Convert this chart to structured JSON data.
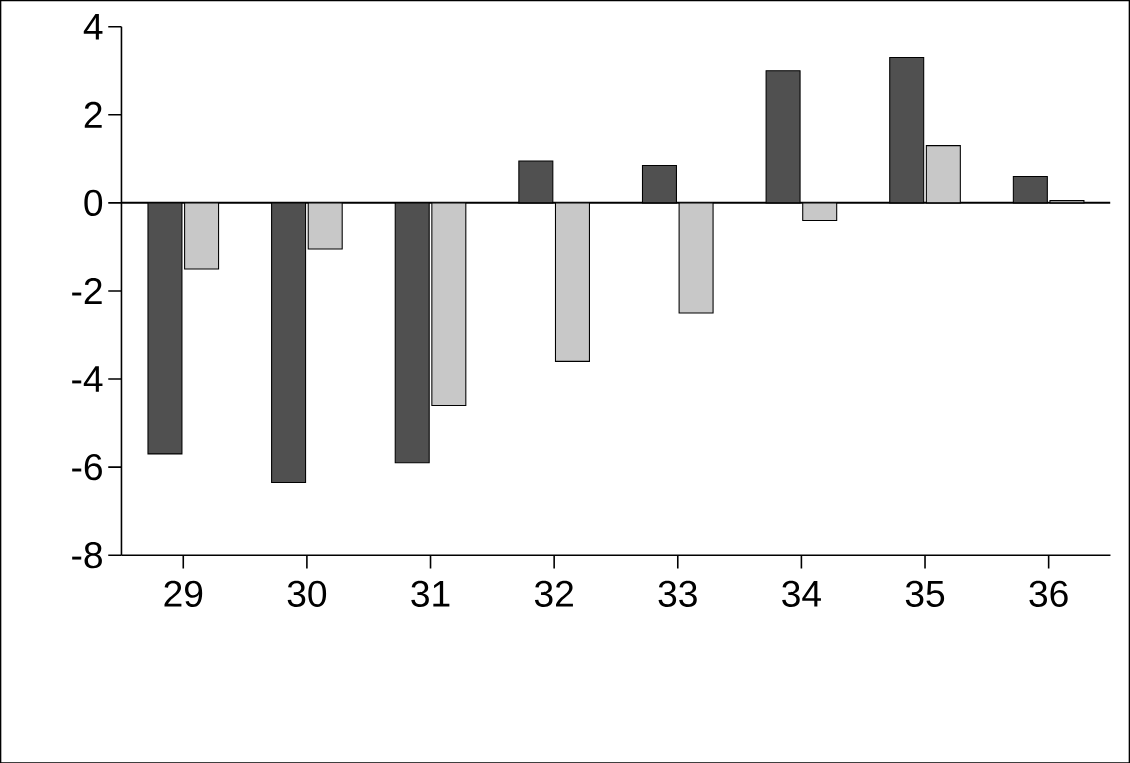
{
  "chart_data": {
    "type": "bar",
    "categories": [
      "29",
      "30",
      "31",
      "32",
      "33",
      "34",
      "35",
      "36"
    ],
    "series": [
      {
        "color": "#505050",
        "values": [
          -5.7,
          -6.35,
          -5.9,
          0.95,
          0.85,
          3.0,
          3.3,
          0.6
        ]
      },
      {
        "color": "#c8c8c8",
        "values": [
          -1.5,
          -1.05,
          -4.6,
          -3.6,
          -2.5,
          -0.4,
          1.3,
          0.05
        ]
      }
    ],
    "ylim": [
      -8,
      4
    ],
    "yticks": [
      -8,
      -6,
      -4,
      -2,
      0,
      2,
      4
    ],
    "ref_lines": [
      {
        "axis": "y",
        "value": 0,
        "color": "#000000"
      }
    ]
  }
}
